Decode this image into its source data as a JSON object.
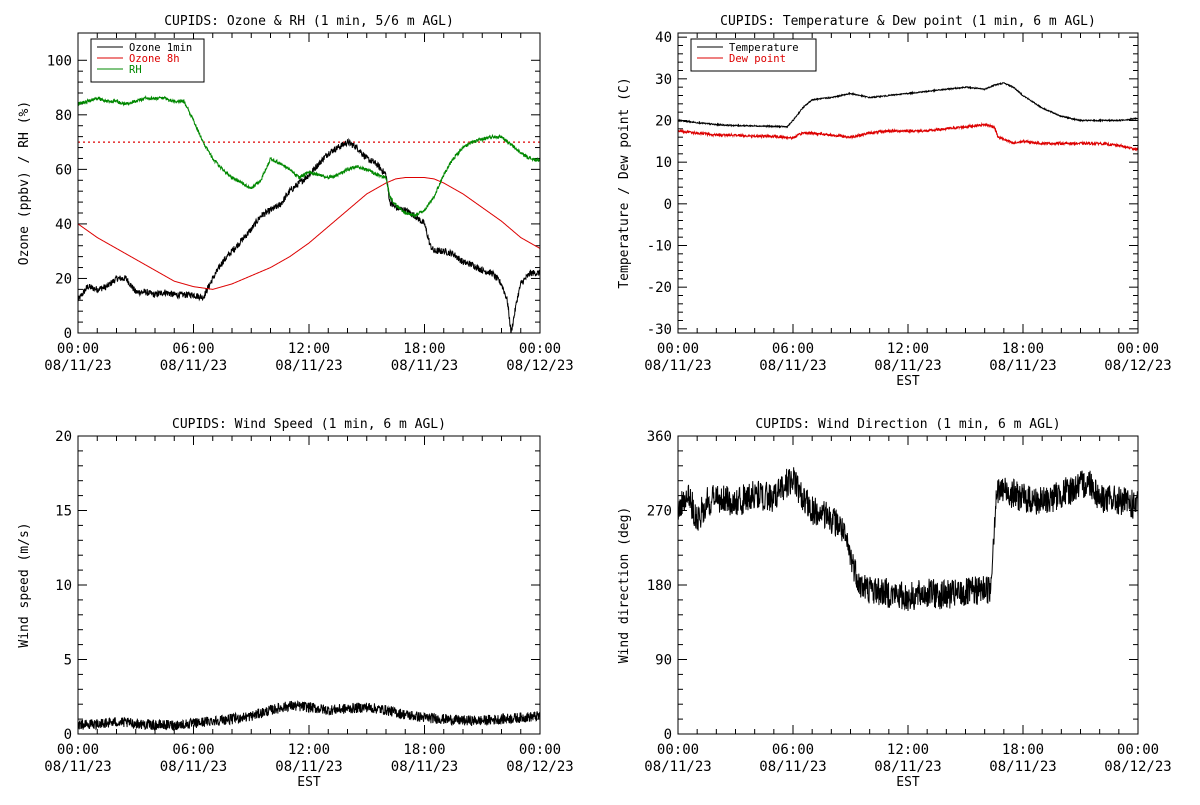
{
  "chart_data": [
    {
      "type": "line",
      "title": "CUPIDS: Ozone & RH (1 min, 5/6 m AGL)",
      "xlabel": "",
      "ylabel": "Ozone (ppbv) / RH (%)",
      "xlim": [
        0,
        24
      ],
      "ylim": [
        0,
        110
      ],
      "yticks": [
        0,
        20,
        40,
        60,
        80,
        100
      ],
      "xticks": [
        {
          "t": 0,
          "time": "00:00",
          "date": "08/11/23"
        },
        {
          "t": 6,
          "time": "06:00",
          "date": "08/11/23"
        },
        {
          "t": 12,
          "time": "12:00",
          "date": "08/11/23"
        },
        {
          "t": 18,
          "time": "18:00",
          "date": "08/11/23"
        },
        {
          "t": 24,
          "time": "00:00",
          "date": "08/12/23"
        }
      ],
      "legend": "top-left",
      "reference_lines": [
        {
          "y": 70,
          "style": "dotted",
          "color": "#dd0000"
        }
      ],
      "series": [
        {
          "name": "Ozone 1min",
          "color": "#000000",
          "noise": 1.2,
          "x": [
            0,
            0.5,
            1,
            1.5,
            2,
            2.5,
            3,
            3.5,
            4,
            4.5,
            5,
            5.5,
            6,
            6.5,
            7,
            7.5,
            8,
            8.5,
            9,
            9.5,
            10,
            10.5,
            11,
            11.5,
            12,
            12.5,
            13,
            13.5,
            14,
            14.5,
            15,
            15.5,
            16,
            16.2,
            16.5,
            17,
            17.5,
            18,
            18.3,
            18.5,
            19,
            19.5,
            20,
            20.5,
            21,
            21.5,
            22,
            22.3,
            22.5,
            22.8,
            23,
            23.5,
            24
          ],
          "y": [
            12,
            17,
            16,
            17,
            20,
            20,
            15,
            15,
            14,
            15,
            14,
            14,
            14,
            13,
            20,
            26,
            30,
            34,
            38,
            43,
            45,
            47,
            52,
            55,
            58,
            62,
            66,
            68,
            70,
            68,
            64,
            62,
            58,
            48,
            46,
            45,
            43,
            40,
            32,
            30,
            30,
            29,
            26,
            25,
            23,
            22,
            18,
            12,
            0,
            12,
            18,
            22,
            22
          ]
        },
        {
          "name": "Ozone 8h",
          "color": "#dd0000",
          "noise": 0,
          "x": [
            0,
            1,
            2,
            3,
            4,
            5,
            6,
            6.5,
            7,
            8,
            9,
            10,
            11,
            12,
            13,
            14,
            15,
            16,
            16.5,
            17,
            18,
            18.5,
            19,
            20,
            21,
            22,
            23,
            24
          ],
          "y": [
            40,
            35,
            31,
            27,
            23,
            19,
            17,
            16.5,
            16,
            18,
            21,
            24,
            28,
            33,
            39,
            45,
            51,
            55,
            56.5,
            57,
            57,
            56.5,
            55,
            51,
            46,
            41,
            35,
            31
          ]
        },
        {
          "name": "RH",
          "color": "#008800",
          "noise": 0.6,
          "x": [
            0,
            0.5,
            1,
            1.5,
            2,
            2.5,
            3,
            3.5,
            4,
            4.5,
            5,
            5.5,
            6,
            6.5,
            7,
            7.5,
            8,
            8.5,
            9,
            9.5,
            10,
            10.5,
            11,
            11.5,
            12,
            12.5,
            13,
            13.5,
            14,
            14.5,
            15,
            15.5,
            16,
            16.2,
            16.5,
            17,
            17.5,
            18,
            18.5,
            19,
            19.5,
            20,
            20.5,
            21,
            21.5,
            22,
            22.5,
            23,
            23.5,
            24
          ],
          "y": [
            84,
            85,
            86,
            85,
            85,
            84,
            85,
            86,
            86,
            86,
            85,
            85,
            78,
            70,
            64,
            60,
            57,
            55,
            53,
            56,
            64,
            62,
            60,
            57,
            59,
            58,
            57,
            58,
            60,
            61,
            60,
            58,
            57,
            50,
            47,
            44,
            43,
            45,
            50,
            58,
            64,
            68,
            70,
            71,
            72,
            72,
            69,
            66,
            64,
            63
          ]
        }
      ]
    },
    {
      "type": "line",
      "title": "CUPIDS: Temperature & Dew point (1 min, 6 m AGL)",
      "xlabel": "EST",
      "ylabel": "Temperature / Dew point (C)",
      "xlim": [
        0,
        24
      ],
      "ylim": [
        -31,
        41
      ],
      "yticks": [
        -30,
        -20,
        -10,
        0,
        10,
        20,
        30,
        40
      ],
      "xticks": [
        {
          "t": 0,
          "time": "00:00",
          "date": "08/11/23"
        },
        {
          "t": 6,
          "time": "06:00",
          "date": "08/11/23"
        },
        {
          "t": 12,
          "time": "12:00",
          "date": "08/11/23"
        },
        {
          "t": 18,
          "time": "18:00",
          "date": "08/11/23"
        },
        {
          "t": 24,
          "time": "00:00",
          "date": "08/12/23"
        }
      ],
      "legend": "top-left",
      "series": [
        {
          "name": "Temperature",
          "color": "#000000",
          "noise": 0.15,
          "x": [
            0,
            1,
            2,
            3,
            4,
            5,
            5.7,
            6,
            6.5,
            7,
            8,
            9,
            10,
            11,
            12,
            13,
            14,
            15,
            16,
            16.5,
            17,
            17.5,
            18,
            19,
            20,
            21,
            22,
            23,
            24
          ],
          "y": [
            20,
            19.5,
            19,
            18.8,
            18.7,
            18.6,
            18.5,
            20,
            23,
            25,
            25.5,
            26.5,
            25.5,
            26,
            26.5,
            27,
            27.5,
            28,
            27.5,
            28.5,
            29,
            28,
            26,
            23,
            21,
            20,
            20,
            20,
            20.5
          ]
        },
        {
          "name": "Dew point",
          "color": "#dd0000",
          "noise": 0.3,
          "x": [
            0,
            1,
            2,
            3,
            4,
            5,
            6,
            6.5,
            7,
            8,
            9,
            10,
            11,
            12,
            13,
            14,
            15,
            16,
            16.5,
            16.7,
            17,
            17.5,
            18,
            19,
            20,
            21,
            22,
            23,
            24
          ],
          "y": [
            17.5,
            17,
            16.5,
            16.5,
            16.2,
            16.2,
            15.8,
            17,
            17,
            16.5,
            16,
            17,
            17.5,
            17.5,
            17.5,
            18,
            18.5,
            19,
            18.5,
            16,
            15.5,
            14.5,
            15,
            14.5,
            14.5,
            14.5,
            14.5,
            14,
            13
          ]
        }
      ]
    },
    {
      "type": "line",
      "title": "CUPIDS: Wind Speed (1 min, 6 m AGL)",
      "xlabel": "EST",
      "ylabel": "Wind speed (m/s)",
      "xlim": [
        0,
        24
      ],
      "ylim": [
        0,
        20
      ],
      "yticks": [
        0,
        5,
        10,
        15,
        20
      ],
      "xticks": [
        {
          "t": 0,
          "time": "00:00",
          "date": "08/11/23"
        },
        {
          "t": 6,
          "time": "06:00",
          "date": "08/11/23"
        },
        {
          "t": 12,
          "time": "12:00",
          "date": "08/11/23"
        },
        {
          "t": 18,
          "time": "18:00",
          "date": "08/11/23"
        },
        {
          "t": 24,
          "time": "00:00",
          "date": "08/12/23"
        }
      ],
      "series": [
        {
          "name": "",
          "color": "#000000",
          "noise": 0.35,
          "x": [
            0,
            1,
            2,
            3,
            4,
            5,
            6,
            7,
            8,
            9,
            10,
            11,
            12,
            13,
            14,
            15,
            16,
            17,
            18,
            19,
            20,
            21,
            22,
            23,
            24
          ],
          "y": [
            0.6,
            0.7,
            0.8,
            0.7,
            0.6,
            0.6,
            0.7,
            0.9,
            1.0,
            1.2,
            1.6,
            1.9,
            1.8,
            1.6,
            1.7,
            1.8,
            1.6,
            1.3,
            1.1,
            1.0,
            0.9,
            0.9,
            1.0,
            1.1,
            1.2
          ]
        }
      ]
    },
    {
      "type": "line",
      "title": "CUPIDS: Wind Direction (1 min, 6 m AGL)",
      "xlabel": "EST",
      "ylabel": "Wind direction (deg)",
      "xlim": [
        0,
        24
      ],
      "ylim": [
        0,
        360
      ],
      "yticks": [
        0,
        90,
        180,
        270,
        360
      ],
      "xticks": [
        {
          "t": 0,
          "time": "00:00",
          "date": "08/11/23"
        },
        {
          "t": 6,
          "time": "06:00",
          "date": "08/11/23"
        },
        {
          "t": 12,
          "time": "12:00",
          "date": "08/11/23"
        },
        {
          "t": 18,
          "time": "18:00",
          "date": "08/11/23"
        },
        {
          "t": 24,
          "time": "00:00",
          "date": "08/12/23"
        }
      ],
      "series": [
        {
          "name": "",
          "color": "#000000",
          "noise": 18,
          "x": [
            0,
            0.5,
            1,
            1.5,
            2,
            3,
            4,
            5,
            5.5,
            6,
            6.5,
            7,
            7.5,
            8,
            8.5,
            9,
            9.5,
            10,
            11,
            12,
            13,
            14,
            15,
            16,
            16.3,
            16.6,
            17,
            18,
            19,
            20,
            21,
            21.5,
            22,
            23,
            24
          ],
          "y": [
            275,
            290,
            260,
            280,
            285,
            280,
            290,
            285,
            300,
            310,
            285,
            270,
            265,
            260,
            250,
            215,
            180,
            175,
            170,
            165,
            170,
            168,
            170,
            175,
            175,
            290,
            295,
            285,
            280,
            290,
            300,
            305,
            285,
            282,
            275
          ]
        }
      ]
    }
  ]
}
